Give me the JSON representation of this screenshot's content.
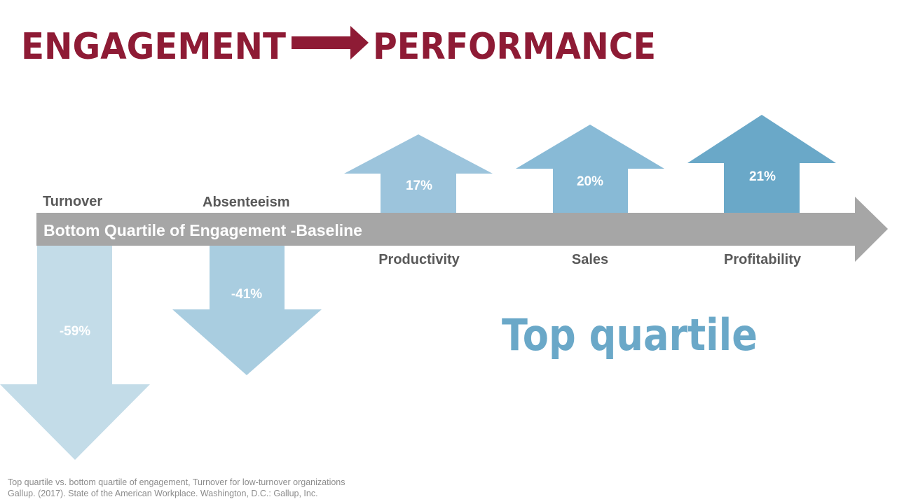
{
  "title": {
    "left": "ENGAGEMENT",
    "right": "PERFORMANCE",
    "arrow_icon": "right-arrow-icon"
  },
  "baseline_label": "Bottom Quartile of Engagement -Baseline",
  "top_quartile_label": "Top quartile",
  "footnote": {
    "line1": "Top quartile vs. bottom quartile of engagement, Turnover for low-turnover organizations",
    "line2": "Gallup. (2017). State of the American Workplace. Washington, D.C.: Gallup, Inc."
  },
  "colors": {
    "title": "#8e1b35",
    "baseline_arrow": "#a6a6a6",
    "turnover": "#c3dce8",
    "absenteeism": "#a9cde0",
    "productivity": "#9cc4dc",
    "sales": "#88bad6",
    "profitability": "#6aa8c8",
    "label_gray": "#595959"
  },
  "metrics": [
    {
      "name": "Turnover",
      "value": "-59%",
      "direction": "down",
      "icon": "down-arrow-icon"
    },
    {
      "name": "Absenteeism",
      "value": "-41%",
      "direction": "down",
      "icon": "down-arrow-icon"
    },
    {
      "name": "Productivity",
      "value": "17%",
      "direction": "up",
      "icon": "up-arrow-icon"
    },
    {
      "name": "Sales",
      "value": "20%",
      "direction": "up",
      "icon": "up-arrow-icon"
    },
    {
      "name": "Profitability",
      "value": "21%",
      "direction": "up",
      "icon": "up-arrow-icon"
    }
  ]
}
